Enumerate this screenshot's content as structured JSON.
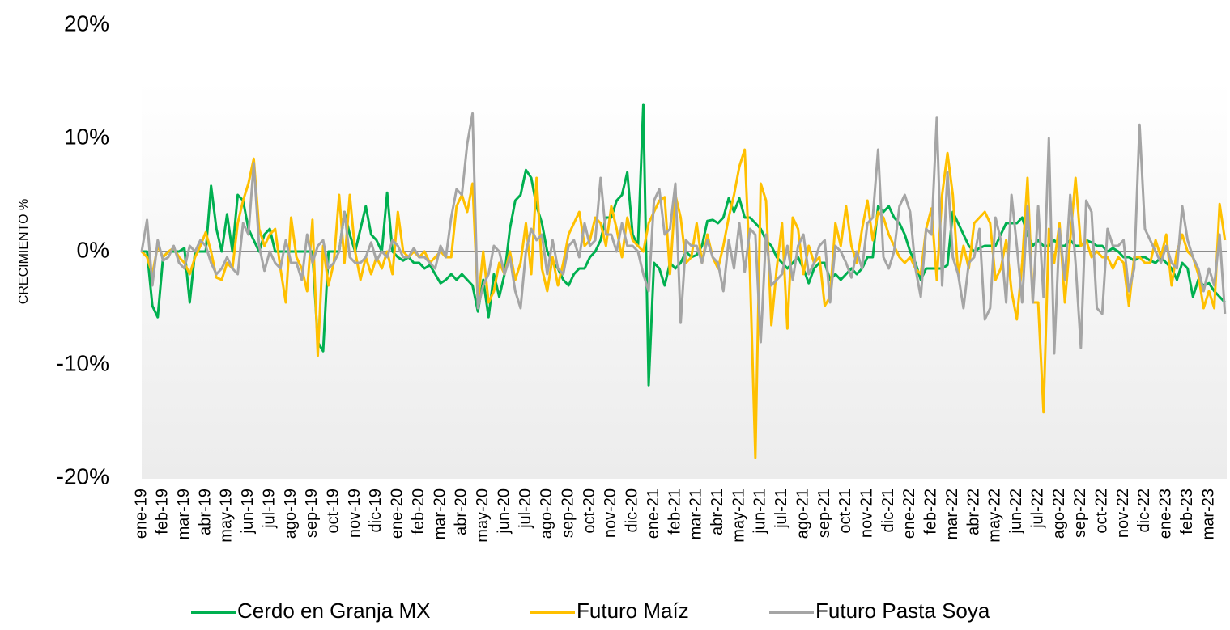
{
  "chart_data": {
    "type": "line",
    "y_label": "CRECIMIENTO %",
    "ylim": [
      -20,
      20
    ],
    "yticks": [
      {
        "value": -20,
        "label": "-20%"
      },
      {
        "value": -10,
        "label": "-10%"
      },
      {
        "value": 0,
        "label": "0%"
      },
      {
        "value": 10,
        "label": "10%"
      },
      {
        "value": 20,
        "label": "20%"
      }
    ],
    "grid": false,
    "legend": "bottom",
    "categories": [
      "ene-19",
      null,
      null,
      null,
      "feb-19",
      null,
      null,
      null,
      "mar-19",
      null,
      null,
      null,
      "abr-19",
      null,
      null,
      null,
      "may-19",
      null,
      null,
      null,
      "jun-19",
      null,
      null,
      null,
      "jul-19",
      null,
      null,
      null,
      "ago-19",
      null,
      null,
      null,
      "sep-19",
      null,
      null,
      null,
      "oct-19",
      null,
      null,
      null,
      "nov-19",
      null,
      null,
      null,
      "dic-19",
      null,
      null,
      null,
      "ene-20",
      null,
      null,
      null,
      "feb-20",
      null,
      null,
      null,
      "mar-20",
      null,
      null,
      null,
      "abr-20",
      null,
      null,
      null,
      "may-20",
      null,
      null,
      null,
      "jun-20",
      null,
      null,
      null,
      "jul-20",
      null,
      null,
      null,
      "ago-20",
      null,
      null,
      null,
      "sep-20",
      null,
      null,
      null,
      "oct-20",
      null,
      null,
      null,
      "nov-20",
      null,
      null,
      null,
      "dic-20",
      null,
      null,
      null,
      "ene-21",
      null,
      null,
      null,
      "feb-21",
      null,
      null,
      null,
      "mar-21",
      null,
      null,
      null,
      "abr-21",
      null,
      null,
      null,
      "may-21",
      null,
      null,
      null,
      "jun-21",
      null,
      null,
      null,
      "jul-21",
      null,
      null,
      null,
      "ago-21",
      null,
      null,
      null,
      "sep-21",
      null,
      null,
      null,
      "oct-21",
      null,
      null,
      null,
      "nov-21",
      null,
      null,
      null,
      "dic-21",
      null,
      null,
      null,
      "ene-22",
      null,
      null,
      null,
      "feb-22",
      null,
      null,
      null,
      "mar-22",
      null,
      null,
      null,
      "abr-22",
      null,
      null,
      null,
      "may-22",
      null,
      null,
      null,
      "jun-22",
      null,
      null,
      null,
      "jul-22",
      null,
      null,
      null,
      "ago-22",
      null,
      null,
      null,
      "sep-22",
      null,
      null,
      null,
      "oct-22",
      null,
      null,
      null,
      "nov-22",
      null,
      null,
      null,
      "dic-22",
      null,
      null,
      null,
      "ene-23",
      null,
      null,
      null,
      "feb-23",
      null,
      null,
      null,
      "mar-23",
      null,
      null,
      null
    ],
    "series": [
      {
        "name": "Cerdo en Granja MX",
        "color": "#00b050",
        "values": [
          0,
          0,
          -4.8,
          -5.8,
          -0.5,
          0,
          0,
          0,
          0.3,
          -4.5,
          0,
          0,
          0,
          5.8,
          2,
          0,
          3.3,
          0,
          5,
          4.5,
          2,
          1,
          0,
          1.5,
          2,
          0,
          0,
          0,
          0,
          0,
          0,
          0,
          0,
          -8,
          -8.8,
          0,
          0,
          0,
          3.5,
          1.5,
          0,
          2,
          4,
          1.5,
          1,
          0,
          5.2,
          0,
          -0.5,
          -0.8,
          -0.5,
          -1,
          -1,
          -1.5,
          -1.2,
          -2,
          -2.8,
          -2.5,
          -2,
          -2.5,
          -2,
          -2.5,
          -3,
          -5.3,
          -2.5,
          -5.8,
          -2,
          -4,
          -2,
          2,
          4.5,
          5,
          7.2,
          6.5,
          4,
          2.5,
          0,
          -1,
          -1.5,
          -2.5,
          -3,
          -2,
          -1.5,
          -1.5,
          -0.5,
          0,
          1,
          3,
          3,
          4.5,
          5,
          7,
          1.5,
          0.5,
          13,
          -11.8,
          -1,
          -1.5,
          -3,
          -1,
          -1.5,
          -1,
          0,
          -0.5,
          -0.3,
          0.5,
          2.7,
          2.8,
          2.5,
          3,
          4.7,
          3.5,
          4.7,
          3,
          3,
          2.5,
          2,
          1,
          0.5,
          -0.5,
          -1,
          -1.5,
          -1,
          -0.5,
          -1.5,
          -2.8,
          -1.5,
          -1,
          -1,
          -2.5,
          -2,
          -2.5,
          -2,
          -1.5,
          -2,
          -1.5,
          -0.5,
          -0.5,
          4,
          3.5,
          4,
          3,
          2.5,
          1.5,
          0,
          -1,
          -2.5,
          -1.5,
          -1.5,
          -1.5,
          -1.5,
          -1.2,
          3.5,
          2.5,
          1.5,
          0.5,
          0,
          0.3,
          0.5,
          0.5,
          0.5,
          1.5,
          2.5,
          2.5,
          2.5,
          3,
          1.5,
          0.5,
          1,
          0.5,
          0.5,
          1,
          0.5,
          0.5,
          1,
          0.5,
          0.5,
          1,
          0.8,
          0.5,
          0.5,
          0,
          0.3,
          0,
          -0.5,
          -0.5,
          -0.8,
          -0.5,
          -0.5,
          -0.8,
          -1,
          -0.5,
          -1,
          -1.5,
          -2.5,
          -1,
          -1.5,
          -4,
          -2.5,
          -3,
          -2.8,
          -3.5,
          -4,
          -4.5
        ]
      },
      {
        "name": "Futuro Maíz",
        "color": "#ffc000",
        "values": [
          0,
          -0.5,
          -2,
          0.5,
          -0.5,
          0,
          0.3,
          -0.5,
          -1,
          -2,
          -0.5,
          0.5,
          1.7,
          0,
          -2.3,
          -2.5,
          -1,
          -1.5,
          2.5,
          4.5,
          6,
          8.2,
          2,
          0.5,
          1.5,
          2,
          -1.5,
          -4.5,
          3,
          -0.5,
          -1.5,
          -3.5,
          2.8,
          -9.2,
          0.5,
          -3,
          -1,
          5,
          -1,
          5,
          0,
          -2.5,
          -0.5,
          -2,
          -0.5,
          -1.5,
          0,
          -2,
          3.5,
          0,
          -0.5,
          0,
          -0.5,
          0,
          -1,
          -0.5,
          0,
          -0.5,
          -0.5,
          4,
          5,
          3.5,
          6,
          -4.5,
          0,
          -4.5,
          -3.5,
          -1,
          -2,
          0,
          -2.5,
          -1,
          2.5,
          -2,
          6.5,
          -1.5,
          -3.5,
          -0.5,
          -3,
          -1,
          1.5,
          2.5,
          3.5,
          0.5,
          1,
          3,
          2.5,
          0.5,
          4,
          2,
          -0.5,
          3,
          1,
          0.5,
          0,
          2.5,
          3.5,
          4.5,
          4.8,
          -2,
          5,
          3,
          -1,
          -0.5,
          2.5,
          -1,
          1.5,
          -0.5,
          -1.5,
          0.5,
          3,
          5,
          7.5,
          9,
          -2,
          -18.2,
          6,
          4.5,
          -6.5,
          -1.5,
          2.5,
          -6.8,
          3,
          2,
          -2,
          0.5,
          -1,
          -0.5,
          -4.8,
          -4,
          2.5,
          0.5,
          4,
          0.5,
          -1,
          2,
          4.5,
          1,
          3.5,
          3,
          1.5,
          0.5,
          -0.5,
          -1,
          -0.5,
          -1.5,
          -2,
          2,
          3.8,
          -2.5,
          5,
          8.7,
          5,
          -2,
          0.5,
          -1.5,
          2.5,
          3,
          3.5,
          2.5,
          -2.5,
          -1.5,
          1,
          -3.5,
          -6,
          -1,
          6.5,
          -4.5,
          -4.5,
          -14.2,
          2,
          -1,
          2.5,
          -4.5,
          1,
          6.5,
          0.5,
          1,
          -0.5,
          0,
          -0.5,
          -0.5,
          -1.5,
          -0.5,
          -1,
          -4.8,
          -0.5,
          -0.5,
          -1,
          -1,
          1,
          -0.5,
          1.5,
          -3,
          0,
          1.5,
          0,
          -0.5,
          -2,
          -5,
          -3.5,
          -5,
          4.2,
          1
        ]
      },
      {
        "name": "Futuro Pasta Soya",
        "color": "#a5a5a5",
        "values": [
          0,
          2.8,
          -3,
          1,
          -0.8,
          -0.5,
          0.5,
          -1,
          -1.5,
          0.5,
          0,
          1,
          0.5,
          -1,
          -2,
          -1.5,
          -0.5,
          -1.5,
          -2,
          2.5,
          1.5,
          7.8,
          0.5,
          -1.7,
          0,
          -1,
          -1.5,
          1,
          -1,
          -1,
          -2.5,
          1.5,
          -1,
          0.5,
          1,
          -1.5,
          -1,
          0,
          3.5,
          -0.5,
          -1,
          -1,
          -0.5,
          0.8,
          -0.8,
          0,
          -0.5,
          1,
          0.5,
          -0.5,
          -0.5,
          0.3,
          -0.5,
          -0.5,
          -1,
          -1.5,
          0.5,
          -0.5,
          3,
          5.5,
          5,
          9.5,
          12.2,
          -5,
          -3,
          -2,
          0.5,
          0,
          -2,
          -0.5,
          -3.5,
          -5,
          0,
          2,
          1,
          1.5,
          -2,
          1,
          -1.5,
          -2,
          0.5,
          1,
          -0.5,
          2.5,
          0.5,
          1,
          6.5,
          1.5,
          1.5,
          0,
          2.5,
          0.5,
          0.5,
          0,
          -2,
          -3.5,
          4.5,
          5.5,
          1.5,
          2,
          6,
          -6.3,
          1,
          0.5,
          0.5,
          -1,
          1,
          -0.5,
          -1,
          -3.5,
          1,
          -1.5,
          2.5,
          -1.8,
          2,
          1.5,
          -8,
          1.5,
          -3,
          -2.5,
          -2,
          0.5,
          -2.5,
          0.5,
          1.5,
          -2,
          -1,
          0.5,
          1,
          -4.5,
          0.5,
          0,
          -1,
          -2.3,
          0,
          -1.5,
          2.5,
          3,
          9,
          -0.5,
          -1.5,
          0,
          4,
          5,
          3.5,
          -1.5,
          -4,
          2,
          1.5,
          11.8,
          -3,
          7,
          -0.5,
          -2,
          -5,
          -1,
          -0.5,
          2,
          -6,
          -5,
          3,
          1,
          -4.5,
          5,
          0.5,
          -4.5,
          4,
          -4.5,
          4,
          -4,
          10,
          -9,
          2,
          -2.5,
          5,
          -1,
          -8.5,
          4.5,
          3.5,
          -5,
          -5.5,
          2,
          0.5,
          0.5,
          1,
          -3.5,
          -1.5,
          11.2,
          2,
          1,
          0,
          -1,
          0.5,
          -1,
          -1.5,
          4,
          1,
          -0.5,
          -1.5,
          -3.5,
          -1.5,
          -3,
          1.5,
          -5.5
        ]
      }
    ]
  }
}
